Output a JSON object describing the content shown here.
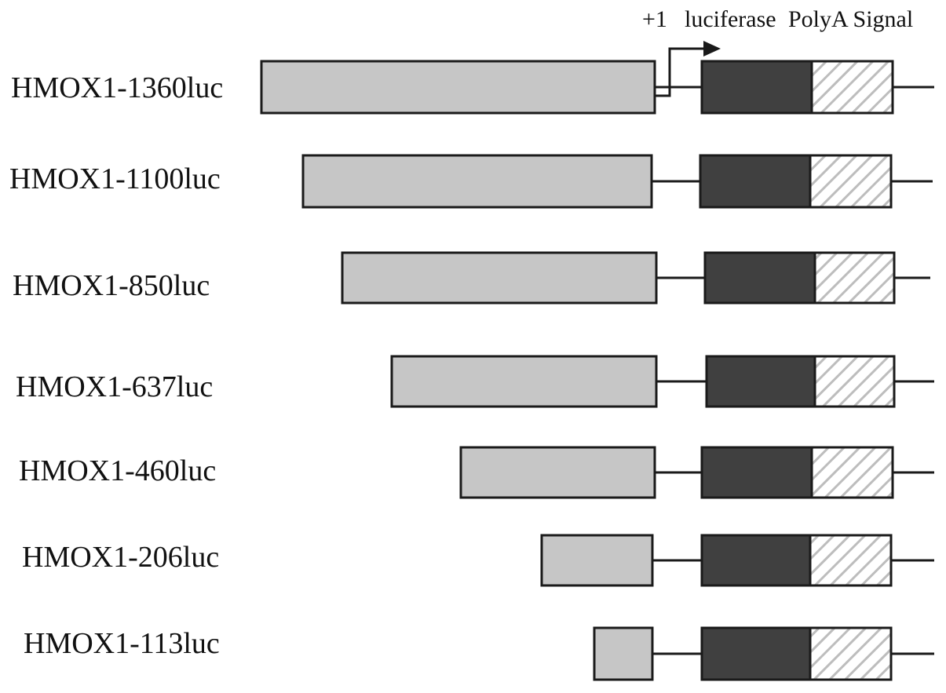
{
  "header": {
    "plus_one": "+1",
    "luciferase": "luciferase",
    "polya": "PolyA Signal"
  },
  "colors": {
    "promoter": "#c6c6c6",
    "luciferase": "#404040",
    "polya_stripe": "#bdbdbd",
    "outline": "#1a1a1a"
  },
  "constructs": [
    {
      "label": "HMOX1-1360luc"
    },
    {
      "label": "HMOX1-1100luc"
    },
    {
      "label": "HMOX1-850luc"
    },
    {
      "label": "HMOX1-637luc"
    },
    {
      "label": "HMOX1-460luc"
    },
    {
      "label": "HMOX1-206luc"
    },
    {
      "label": "HMOX1-113luc"
    }
  ]
}
